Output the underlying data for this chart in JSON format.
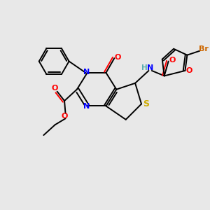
{
  "bg_color": "#e8e8e8",
  "atom_colors": {
    "C": "#000000",
    "N": "#0000ff",
    "O": "#ff0000",
    "S": "#ccaa00",
    "Br": "#cc6600",
    "H": "#5aafaf",
    "bond": "#000000"
  },
  "figsize": [
    3.0,
    3.0
  ],
  "dpi": 100,
  "xlim": [
    0,
    10
  ],
  "ylim": [
    0,
    10
  ]
}
